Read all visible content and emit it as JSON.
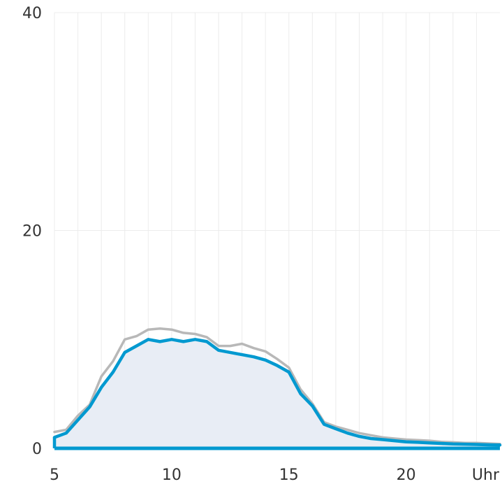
{
  "chart_data": {
    "type": "area",
    "title": "",
    "xlabel": "Uhr",
    "ylabel": "",
    "xlim": [
      5,
      24
    ],
    "ylim": [
      0,
      40
    ],
    "x_ticks": [
      5,
      10,
      15,
      20
    ],
    "y_ticks": [
      0,
      20,
      40
    ],
    "grid": true,
    "colors": {
      "primary": "#0099d0",
      "secondary": "#b8b8b8",
      "fill": "#e8edf5"
    },
    "series": [
      {
        "x": [
          5,
          5.5,
          6,
          6.5,
          7,
          7.5,
          8,
          8.5,
          9,
          9.5,
          10,
          10.5,
          11,
          11.5,
          12,
          12.5,
          13,
          13.5,
          14,
          14.5,
          15,
          15.5,
          16,
          16.5,
          17,
          17.5,
          18,
          18.5,
          19,
          19.5,
          20,
          20.5,
          21,
          21.5,
          22,
          22.5,
          23,
          23.5,
          24
        ],
        "values": [
          1.0,
          1.4,
          2.6,
          3.8,
          5.6,
          7.0,
          8.8,
          9.4,
          10.0,
          9.8,
          10.0,
          9.8,
          10.0,
          9.8,
          9.0,
          8.8,
          8.6,
          8.4,
          8.1,
          7.6,
          7.0,
          5.0,
          3.9,
          2.2,
          1.8,
          1.4,
          1.1,
          0.9,
          0.8,
          0.7,
          0.6,
          0.55,
          0.5,
          0.45,
          0.4,
          0.38,
          0.35,
          0.32,
          0.3
        ]
      },
      {
        "x": [
          5,
          5.5,
          6,
          6.5,
          7,
          7.5,
          8,
          8.5,
          9,
          9.5,
          10,
          10.5,
          11,
          11.5,
          12,
          12.5,
          13,
          13.5,
          14,
          14.5,
          15,
          15.5,
          16,
          16.5,
          17,
          17.5,
          18,
          18.5,
          19,
          19.5,
          20,
          20.5,
          21,
          21.5,
          22,
          22.5,
          23,
          23.5,
          24
        ],
        "values": [
          1.5,
          1.7,
          3.0,
          4.0,
          6.6,
          8.0,
          10.0,
          10.3,
          10.9,
          11.0,
          10.9,
          10.6,
          10.5,
          10.2,
          9.4,
          9.4,
          9.6,
          9.2,
          8.9,
          8.2,
          7.4,
          5.4,
          4.1,
          2.4,
          2.0,
          1.7,
          1.4,
          1.2,
          1.0,
          0.9,
          0.8,
          0.75,
          0.7,
          0.6,
          0.55,
          0.5,
          0.5,
          0.45,
          0.4
        ]
      }
    ]
  }
}
